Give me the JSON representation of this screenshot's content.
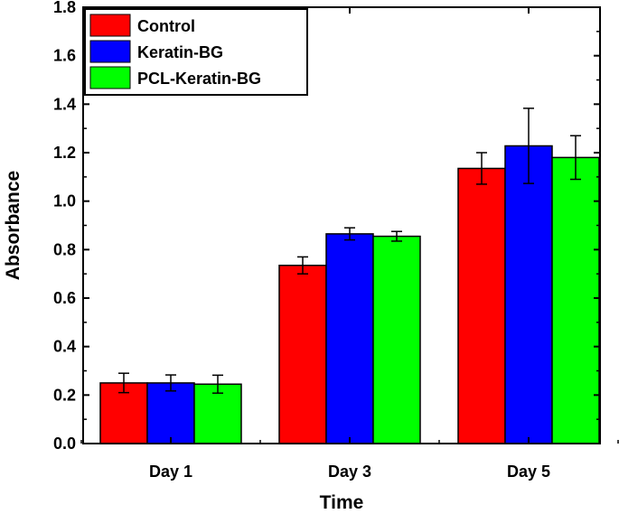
{
  "chart_data": {
    "type": "bar",
    "title": "",
    "xlabel": "Time",
    "ylabel": "Absorbance",
    "categories": [
      "Day 1",
      "Day 3",
      "Day 5"
    ],
    "ylim": [
      0.0,
      1.8
    ],
    "yticks": [
      "0.0",
      "0.2",
      "0.4",
      "0.6",
      "0.8",
      "1.0",
      "1.2",
      "1.4",
      "1.6",
      "1.8"
    ],
    "legend_position": "top-left",
    "series": [
      {
        "name": "Control",
        "color": "#ff0000",
        "values": [
          0.25,
          0.735,
          1.135
        ],
        "errors": [
          0.04,
          0.035,
          0.065
        ]
      },
      {
        "name": "Keratin-BG",
        "color": "#0000ff",
        "values": [
          0.25,
          0.865,
          1.228
        ],
        "errors": [
          0.033,
          0.025,
          0.155
        ]
      },
      {
        "name": "PCL-Keratin-BG",
        "color": "#00ff00",
        "values": [
          0.245,
          0.855,
          1.18
        ],
        "errors": [
          0.037,
          0.02,
          0.09
        ]
      }
    ]
  }
}
